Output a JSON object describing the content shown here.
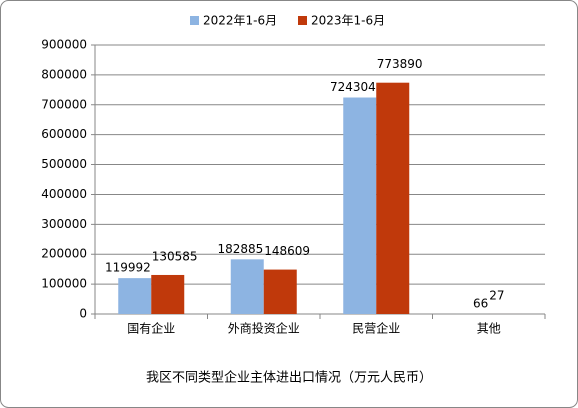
{
  "chart_data": {
    "type": "bar",
    "title": "我区不同类型企业主体进出口情况（万元人民币）",
    "categories": [
      "国有企业",
      "外商投资企业",
      "民营企业",
      "其他"
    ],
    "series": [
      {
        "name": "2022年1-6月",
        "color": "#8db4e2",
        "values": [
          119992,
          182885,
          724304,
          66
        ]
      },
      {
        "name": "2023年1-6月",
        "color": "#c0390b",
        "values": [
          130585,
          148609,
          773890,
          27
        ]
      }
    ],
    "ylim": [
      0,
      900000
    ],
    "yticks": [
      0,
      100000,
      200000,
      300000,
      400000,
      500000,
      600000,
      700000,
      800000,
      900000
    ],
    "grid": true,
    "legend": "top"
  }
}
